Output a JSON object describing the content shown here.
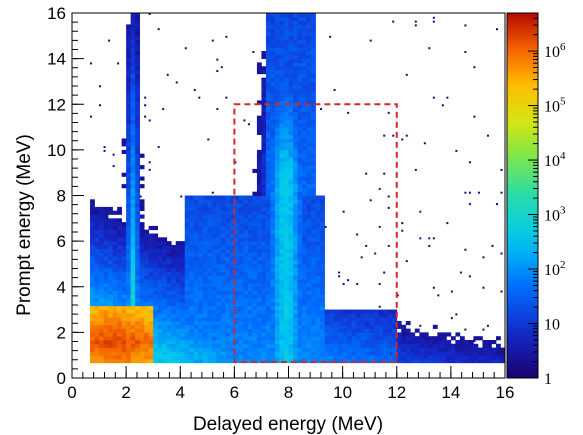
{
  "chart_data": {
    "type": "heatmap",
    "title": "",
    "xlabel": "Delayed energy (MeV)",
    "ylabel": "Prompt energy (MeV)",
    "xlim": [
      0,
      16
    ],
    "ylim": [
      0,
      16
    ],
    "x_ticks": [
      "0",
      "2",
      "4",
      "6",
      "8",
      "10",
      "12",
      "14",
      "16"
    ],
    "y_ticks": [
      "0",
      "2",
      "4",
      "6",
      "8",
      "10",
      "12",
      "14",
      "16"
    ],
    "z_scale": "log",
    "z_range": [
      1,
      5000000
    ],
    "colorbar_ticks": [
      {
        "value": 1,
        "base": "1",
        "exp": ""
      },
      {
        "value": 10,
        "base": "10",
        "exp": ""
      },
      {
        "value": 100,
        "base": "10",
        "exp": "2"
      },
      {
        "value": 1000,
        "base": "10",
        "exp": "3"
      },
      {
        "value": 10000,
        "base": "10",
        "exp": "4"
      },
      {
        "value": 100000,
        "base": "10",
        "exp": "5"
      },
      {
        "value": 1000000,
        "base": "10",
        "exp": "6"
      }
    ],
    "colormap": "rainbow",
    "selection_box": {
      "x": [
        6,
        12
      ],
      "y": [
        0.7,
        12
      ],
      "color": "#d62728",
      "style": "dashed"
    },
    "features": [
      {
        "x": 2.2,
        "y_range": [
          0.7,
          16
        ],
        "peak_log10": 3.0
      },
      {
        "x": 7.9,
        "y_range": [
          0.7,
          16
        ],
        "peak_log10": 2.6
      },
      {
        "x_range": [
          0.7,
          2.8
        ],
        "y_range": [
          0.7,
          3.1
        ],
        "peak_log10": 6.3
      }
    ]
  }
}
